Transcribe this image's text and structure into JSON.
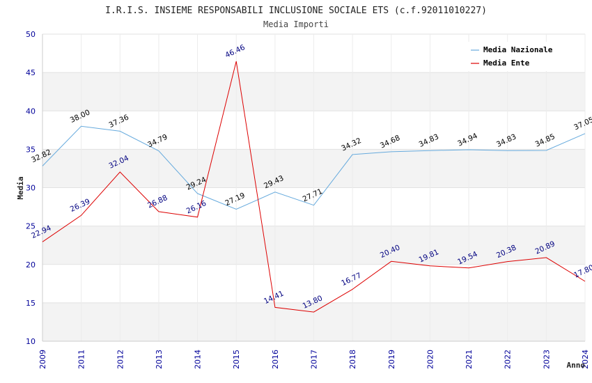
{
  "chart_data": {
    "type": "line",
    "title": "I.R.I.S. INSIEME RESPONSABILI INCLUSIONE SOCIALE ETS (c.f.92011010227)",
    "subtitle": "Media Importi",
    "xlabel": "Anno",
    "ylabel": "Media",
    "ylim": [
      10,
      50
    ],
    "yticks": [
      "10",
      "15",
      "20",
      "25",
      "30",
      "35",
      "40",
      "45",
      "50"
    ],
    "categories": [
      "2009",
      "2011",
      "2012",
      "2013",
      "2014",
      "2015",
      "2016",
      "2017",
      "2018",
      "2019",
      "2020",
      "2021",
      "2022",
      "2023",
      "2024"
    ],
    "legend_position": "top-right",
    "grid": true,
    "series": [
      {
        "name": "Media Nazionale",
        "color": "#66aadd",
        "label_color": "#000000",
        "values": [
          32.82,
          38.0,
          37.36,
          34.79,
          29.24,
          27.19,
          29.43,
          27.71,
          34.32,
          34.68,
          34.83,
          34.94,
          34.83,
          34.85,
          37.05
        ],
        "labels": [
          "32.82",
          "38.00",
          "37.36",
          "34.79",
          "29.24",
          "27.19",
          "29.43",
          "27.71",
          "34.32",
          "34.68",
          "34.83",
          "34.94",
          "34.83",
          "34.85",
          "37.05"
        ]
      },
      {
        "name": "Media Ente",
        "color": "#dd0000",
        "label_color": "#000080",
        "values": [
          22.94,
          26.39,
          32.04,
          26.88,
          26.16,
          46.46,
          14.41,
          13.8,
          16.77,
          20.4,
          19.81,
          19.54,
          20.38,
          20.89,
          17.8
        ],
        "labels": [
          "22.94",
          "26.39",
          "32.04",
          "26.88",
          "26.16",
          "46.46",
          "14.41",
          "13.80",
          "16.77",
          "20.40",
          "19.81",
          "19.54",
          "20.38",
          "20.89",
          "17.80"
        ]
      }
    ]
  }
}
